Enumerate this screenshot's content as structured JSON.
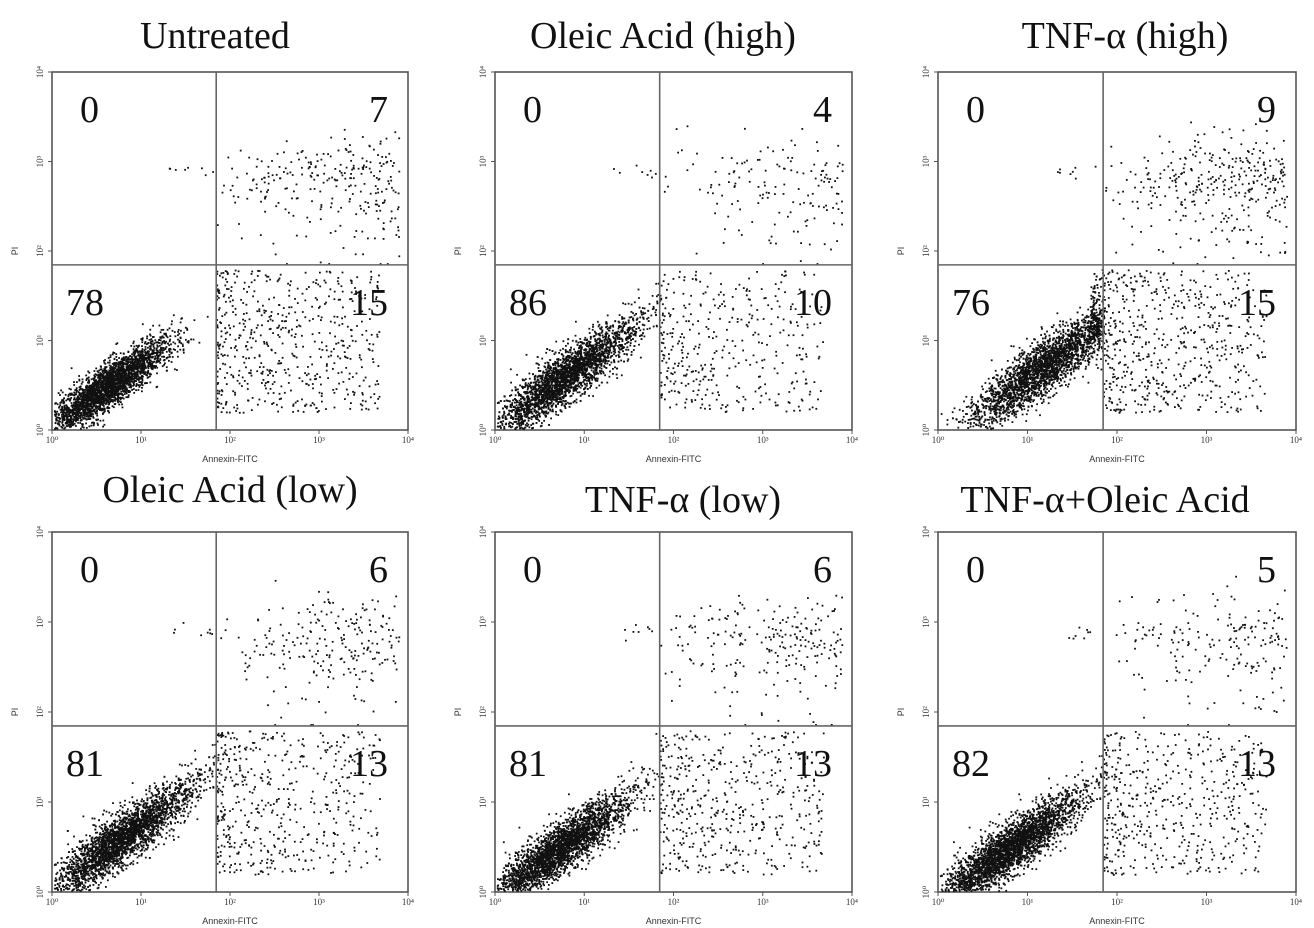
{
  "chart_data": [
    {
      "type": "scatter",
      "title": "Untreated",
      "xlabel": "Annexin-FITC",
      "ylabel": "PI",
      "xscale": "log",
      "yscale": "log",
      "xlim": [
        1,
        10000
      ],
      "ylim": [
        1,
        10000
      ],
      "x_ticks": [
        "10⁰",
        "10¹",
        "10²",
        "10³",
        "10⁴"
      ],
      "y_ticks": [
        "10⁰",
        "10¹",
        "10²",
        "10³",
        "10⁴"
      ],
      "gate": {
        "x": 70,
        "y": 70
      },
      "quadrants": {
        "upper_left": "0",
        "upper_right": "7",
        "lower_left": "78",
        "lower_right": "15"
      },
      "density": {
        "ll_center": [
          4,
          3
        ],
        "spread": 0.9
      }
    },
    {
      "type": "scatter",
      "title": "Oleic Acid (high)",
      "xlabel": "Annexin-FITC",
      "ylabel": "PI",
      "xscale": "log",
      "yscale": "log",
      "xlim": [
        1,
        10000
      ],
      "ylim": [
        1,
        10000
      ],
      "x_ticks": [
        "10⁰",
        "10¹",
        "10²",
        "10³",
        "10⁴"
      ],
      "y_ticks": [
        "10⁰",
        "10¹",
        "10²",
        "10³",
        "10⁴"
      ],
      "gate": {
        "x": 70,
        "y": 70
      },
      "quadrants": {
        "upper_left": "0",
        "upper_right": "4",
        "lower_left": "86",
        "lower_right": "10"
      },
      "density": {
        "ll_center": [
          6,
          4
        ],
        "spread": 1.0
      }
    },
    {
      "type": "scatter",
      "title": "TNF-α (high)",
      "xlabel": "Annexin-FITC",
      "ylabel": "PI",
      "xscale": "log",
      "yscale": "log",
      "xlim": [
        1,
        10000
      ],
      "ylim": [
        1,
        10000
      ],
      "x_ticks": [
        "10⁰",
        "10¹",
        "10²",
        "10³",
        "10⁴"
      ],
      "y_ticks": [
        "10⁰",
        "10¹",
        "10²",
        "10³",
        "10⁴"
      ],
      "gate": {
        "x": 70,
        "y": 70
      },
      "quadrants": {
        "upper_left": "0",
        "upper_right": "9",
        "lower_left": "76",
        "lower_right": "15"
      },
      "density": {
        "ll_center": [
          15,
          5
        ],
        "spread": 1.1
      }
    },
    {
      "type": "scatter",
      "title": "Oleic Acid (low)",
      "xlabel": "Annexin-FITC",
      "ylabel": "PI",
      "xscale": "log",
      "yscale": "log",
      "xlim": [
        1,
        10000
      ],
      "ylim": [
        1,
        10000
      ],
      "x_ticks": [
        "10⁰",
        "10¹",
        "10²",
        "10³",
        "10⁴"
      ],
      "y_ticks": [
        "10⁰",
        "10¹",
        "10²",
        "10³",
        "10⁴"
      ],
      "gate": {
        "x": 70,
        "y": 70
      },
      "quadrants": {
        "upper_left": "0",
        "upper_right": "6",
        "lower_left": "81",
        "lower_right": "13"
      },
      "density": {
        "ll_center": [
          6,
          4
        ],
        "spread": 1.0
      }
    },
    {
      "type": "scatter",
      "title": "TNF-α (low)",
      "xlabel": "Annexin-FITC",
      "ylabel": "PI",
      "xscale": "log",
      "yscale": "log",
      "xlim": [
        1,
        10000
      ],
      "ylim": [
        1,
        10000
      ],
      "x_ticks": [
        "10⁰",
        "10¹",
        "10²",
        "10³",
        "10⁴"
      ],
      "y_ticks": [
        "10⁰",
        "10¹",
        "10²",
        "10³",
        "10⁴"
      ],
      "gate": {
        "x": 70,
        "y": 70
      },
      "quadrants": {
        "upper_left": "0",
        "upper_right": "6",
        "lower_left": "81",
        "lower_right": "13"
      },
      "density": {
        "ll_center": [
          5,
          3
        ],
        "spread": 1.0
      }
    },
    {
      "type": "scatter",
      "title": "TNF-α+Oleic Acid",
      "xlabel": "Annexin-FITC",
      "ylabel": "PI",
      "xscale": "log",
      "yscale": "log",
      "xlim": [
        1,
        10000
      ],
      "ylim": [
        1,
        10000
      ],
      "x_ticks": [
        "10⁰",
        "10¹",
        "10²",
        "10³",
        "10⁴"
      ],
      "y_ticks": [
        "10⁰",
        "10¹",
        "10²",
        "10³",
        "10⁴"
      ],
      "gate": {
        "x": 70,
        "y": 70
      },
      "quadrants": {
        "upper_left": "0",
        "upper_right": "5",
        "lower_left": "82",
        "lower_right": "13"
      },
      "density": {
        "ll_center": [
          6,
          3
        ],
        "spread": 1.0
      }
    }
  ],
  "colors": {
    "dots": "#111111",
    "frame": "#555555",
    "background": "#ffffff"
  }
}
